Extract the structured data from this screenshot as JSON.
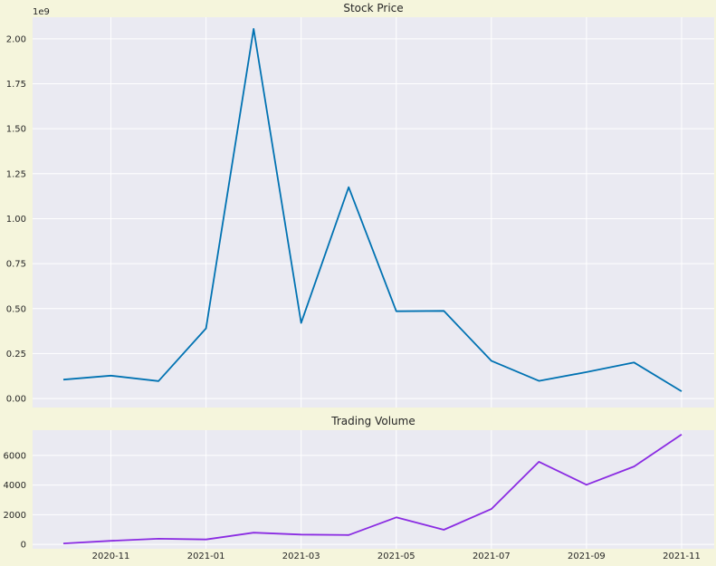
{
  "colors": {
    "figure_bg": "#f5f5dc",
    "axes_bg": "#eaeaf2",
    "grid": "#ffffff",
    "text": "#262626",
    "price_line": "#0072b2",
    "volume_line": "#8a2be2"
  },
  "chart_data": [
    {
      "type": "line",
      "title": "Stock Price",
      "xlabel": "",
      "ylabel": "",
      "y_offset_label": "1e9",
      "x": [
        "2020-10",
        "2020-11",
        "2020-12",
        "2021-01",
        "2021-02",
        "2021-03",
        "2021-04",
        "2021-05",
        "2021-06",
        "2021-07",
        "2021-08",
        "2021-09",
        "2021-10",
        "2021-11"
      ],
      "values": [
        0.105,
        0.127,
        0.097,
        0.39,
        2.055,
        0.42,
        1.175,
        0.485,
        0.487,
        0.21,
        0.098,
        0.147,
        0.2,
        0.04
      ],
      "ylim": [
        -0.05,
        2.12
      ],
      "yticks": [
        0.0,
        0.25,
        0.5,
        0.75,
        1.0,
        1.25,
        1.5,
        1.75,
        2.0
      ],
      "ytick_labels": [
        "0.00",
        "0.25",
        "0.50",
        "0.75",
        "1.00",
        "1.25",
        "1.50",
        "1.75",
        "2.00"
      ],
      "grid": true,
      "color": "#0072b2"
    },
    {
      "type": "line",
      "title": "Trading Volume",
      "xlabel": "",
      "ylabel": "",
      "x": [
        "2020-10",
        "2020-11",
        "2020-12",
        "2021-01",
        "2021-02",
        "2021-03",
        "2021-04",
        "2021-05",
        "2021-06",
        "2021-07",
        "2021-08",
        "2021-09",
        "2021-10",
        "2021-11"
      ],
      "values": [
        60,
        240,
        380,
        330,
        790,
        660,
        630,
        1820,
        980,
        2380,
        5570,
        4020,
        5250,
        7410
      ],
      "ylim": [
        -300,
        7700
      ],
      "yticks": [
        0,
        2000,
        4000,
        6000
      ],
      "ytick_labels": [
        "0",
        "2000",
        "4000",
        "6000"
      ],
      "xticks": [
        "2020-11",
        "2021-01",
        "2021-03",
        "2021-05",
        "2021-07",
        "2021-09",
        "2021-11"
      ],
      "xtick_labels": [
        "2020-11",
        "2021-01",
        "2021-03",
        "2021-05",
        "2021-07",
        "2021-09",
        "2021-11"
      ],
      "grid": true,
      "color": "#8a2be2"
    }
  ]
}
